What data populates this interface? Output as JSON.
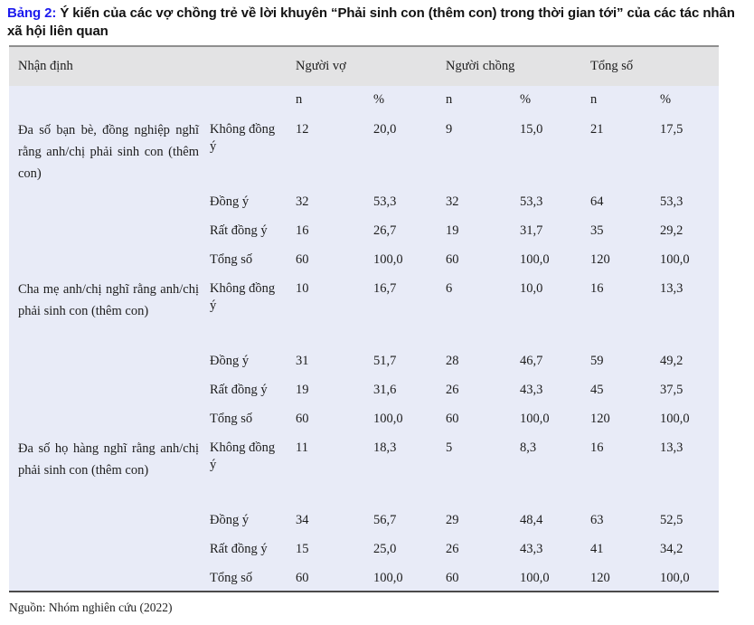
{
  "title": {
    "label": "Bảng 2:",
    "text": "Ý kiến của các vợ chồng trẻ về lời khuyên “Phải sinh con (thêm con) trong thời gian tới” của các tác nhân xã hội liên quan",
    "label_color": "#1c1aee"
  },
  "table": {
    "header": {
      "statement": "Nhận định",
      "groups": [
        "Người vợ",
        "Người chồng",
        "Tổng số"
      ],
      "subcols": [
        "n",
        "%"
      ]
    },
    "blocks": [
      {
        "statement": "Đa số bạn bè, đồng nghiệp nghĩ rằng anh/chị phải sinh con (thêm con)",
        "rows": [
          {
            "label": "Không đồng ý",
            "values": [
              "12",
              "20,0",
              "9",
              "15,0",
              "21",
              "17,5"
            ]
          },
          {
            "label": "Đồng ý",
            "values": [
              "32",
              "53,3",
              "32",
              "53,3",
              "64",
              "53,3"
            ]
          },
          {
            "label": "Rất đồng ý",
            "values": [
              "16",
              "26,7",
              "19",
              "31,7",
              "35",
              "29,2"
            ]
          },
          {
            "label": "Tổng số",
            "values": [
              "60",
              "100,0",
              "60",
              "100,0",
              "120",
              "100,0"
            ]
          }
        ]
      },
      {
        "statement": "Cha mẹ anh/chị nghĩ rằng anh/chị phải sinh con (thêm con)",
        "rows": [
          {
            "label": "Không đồng ý",
            "values": [
              "10",
              "16,7",
              "6",
              "10,0",
              "16",
              "13,3"
            ]
          },
          {
            "label": "Đồng ý",
            "values": [
              "31",
              "51,7",
              "28",
              "46,7",
              "59",
              "49,2"
            ]
          },
          {
            "label": "Rất đồng ý",
            "values": [
              "19",
              "31,6",
              "26",
              "43,3",
              "45",
              "37,5"
            ]
          },
          {
            "label": "Tổng số",
            "values": [
              "60",
              "100,0",
              "60",
              "100,0",
              "120",
              "100,0"
            ]
          }
        ]
      },
      {
        "statement": "Đa số họ hàng nghĩ rằng anh/chị phải sinh con (thêm con)",
        "rows": [
          {
            "label": "Không đồng ý",
            "values": [
              "11",
              "18,3",
              "5",
              "8,3",
              "16",
              "13,3"
            ]
          },
          {
            "label": "Đồng ý",
            "values": [
              "34",
              "56,7",
              "29",
              "48,4",
              "63",
              "52,5"
            ]
          },
          {
            "label": "Rất đồng ý",
            "values": [
              "15",
              "25,0",
              "26",
              "43,3",
              "41",
              "34,2"
            ]
          },
          {
            "label": "Tổng số",
            "values": [
              "60",
              "100,0",
              "60",
              "100,0",
              "120",
              "100,0"
            ]
          }
        ]
      }
    ],
    "colors": {
      "header_bg": "#e3e3e4",
      "body_bg": "#e8ebf7",
      "top_rule": "#8f8f8f",
      "bottom_rule": "#4a4a4a"
    }
  },
  "footer": {
    "source": "Nguồn: Nhóm nghiên cứu (2022)"
  }
}
